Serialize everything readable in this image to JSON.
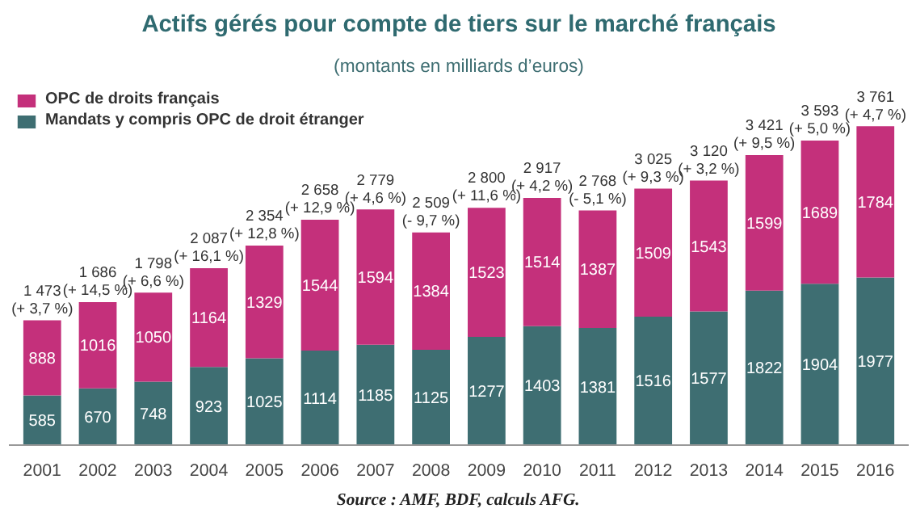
{
  "chart_data": {
    "type": "bar",
    "title": "Actifs gérés pour compte de tiers sur le marché français",
    "subtitle": "(montants en milliards d’euros)",
    "categories": [
      "2001",
      "2002",
      "2003",
      "2004",
      "2005",
      "2006",
      "2007",
      "2008",
      "2009",
      "2010",
      "2011",
      "2012",
      "2013",
      "2014",
      "2015",
      "2016"
    ],
    "stacked": true,
    "data_labels": true,
    "legend": "top left",
    "grid": false,
    "series": [
      {
        "name": "Mandats y compris OPC de droit étranger",
        "color": "#3e6e72",
        "values": [
          585,
          670,
          748,
          923,
          1025,
          1114,
          1185,
          1125,
          1277,
          1403,
          1381,
          1516,
          1577,
          1822,
          1904,
          1977
        ]
      },
      {
        "name": "OPC de droits français",
        "color": "#c4307b",
        "values": [
          888,
          1016,
          1050,
          1164,
          1329,
          1544,
          1594,
          1384,
          1523,
          1514,
          1387,
          1509,
          1543,
          1599,
          1689,
          1784
        ]
      }
    ],
    "totals": [
      "1 473\n(+ 3,7 %)",
      "1 686\n(+ 14,5 %)",
      "1 798\n(+ 6,6 %)",
      "2 087\n(+ 16,1 %)",
      "2 354\n(+ 12,8 %)",
      "2 658\n(+ 12,9 %)",
      "2 779\n(+ 4,6 %)",
      "2 509\n(- 9,7 %)",
      "2 800\n(+ 11,6 %)",
      "2 917\n(+ 4,2 %)",
      "2 768\n(- 5,1 %)",
      "3 025\n(+ 9,3 %)",
      "3 120\n(+ 3,2 %)",
      "3 421\n(+ 9,5 %)",
      "3 593\n(+ 5,0 %)",
      "3 761\n(+ 4,7 %)"
    ],
    "annotations": [
      "Source : AMF, BDF, calculs AFG."
    ]
  }
}
